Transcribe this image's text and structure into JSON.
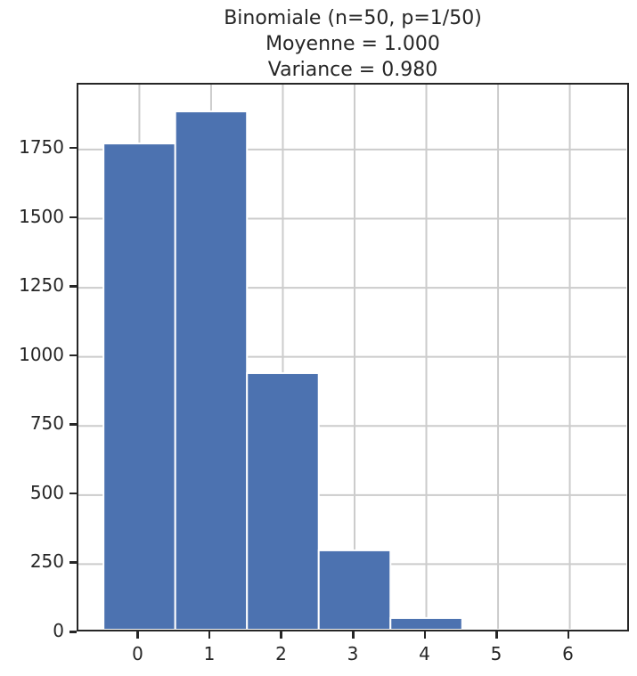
{
  "chart_data": {
    "type": "bar",
    "title": "Binomiale (n=50, p=1/50)\nMoyenne =  1.000\nVariance =  0.980",
    "title_lines": [
      "Binomiale (n=50, p=1/50)",
      "Moyenne =  1.000",
      "Variance =  0.980"
    ],
    "xlabel": "",
    "ylabel": "",
    "categories": [
      "0",
      "1",
      "2",
      "3",
      "4",
      "5",
      "6"
    ],
    "values": [
      1772,
      1888,
      941,
      300,
      55,
      13,
      1
    ],
    "xlim": [
      -0.85,
      6.85
    ],
    "ylim": [
      0,
      1985
    ],
    "xticks": [
      "0",
      "1",
      "2",
      "3",
      "4",
      "5",
      "6"
    ],
    "yticks": [
      "0",
      "250",
      "500",
      "750",
      "1000",
      "1250",
      "1500",
      "1750"
    ],
    "grid": true,
    "legend": null,
    "bar_color": "#4c72b0",
    "grid_color": "#cccccc"
  }
}
